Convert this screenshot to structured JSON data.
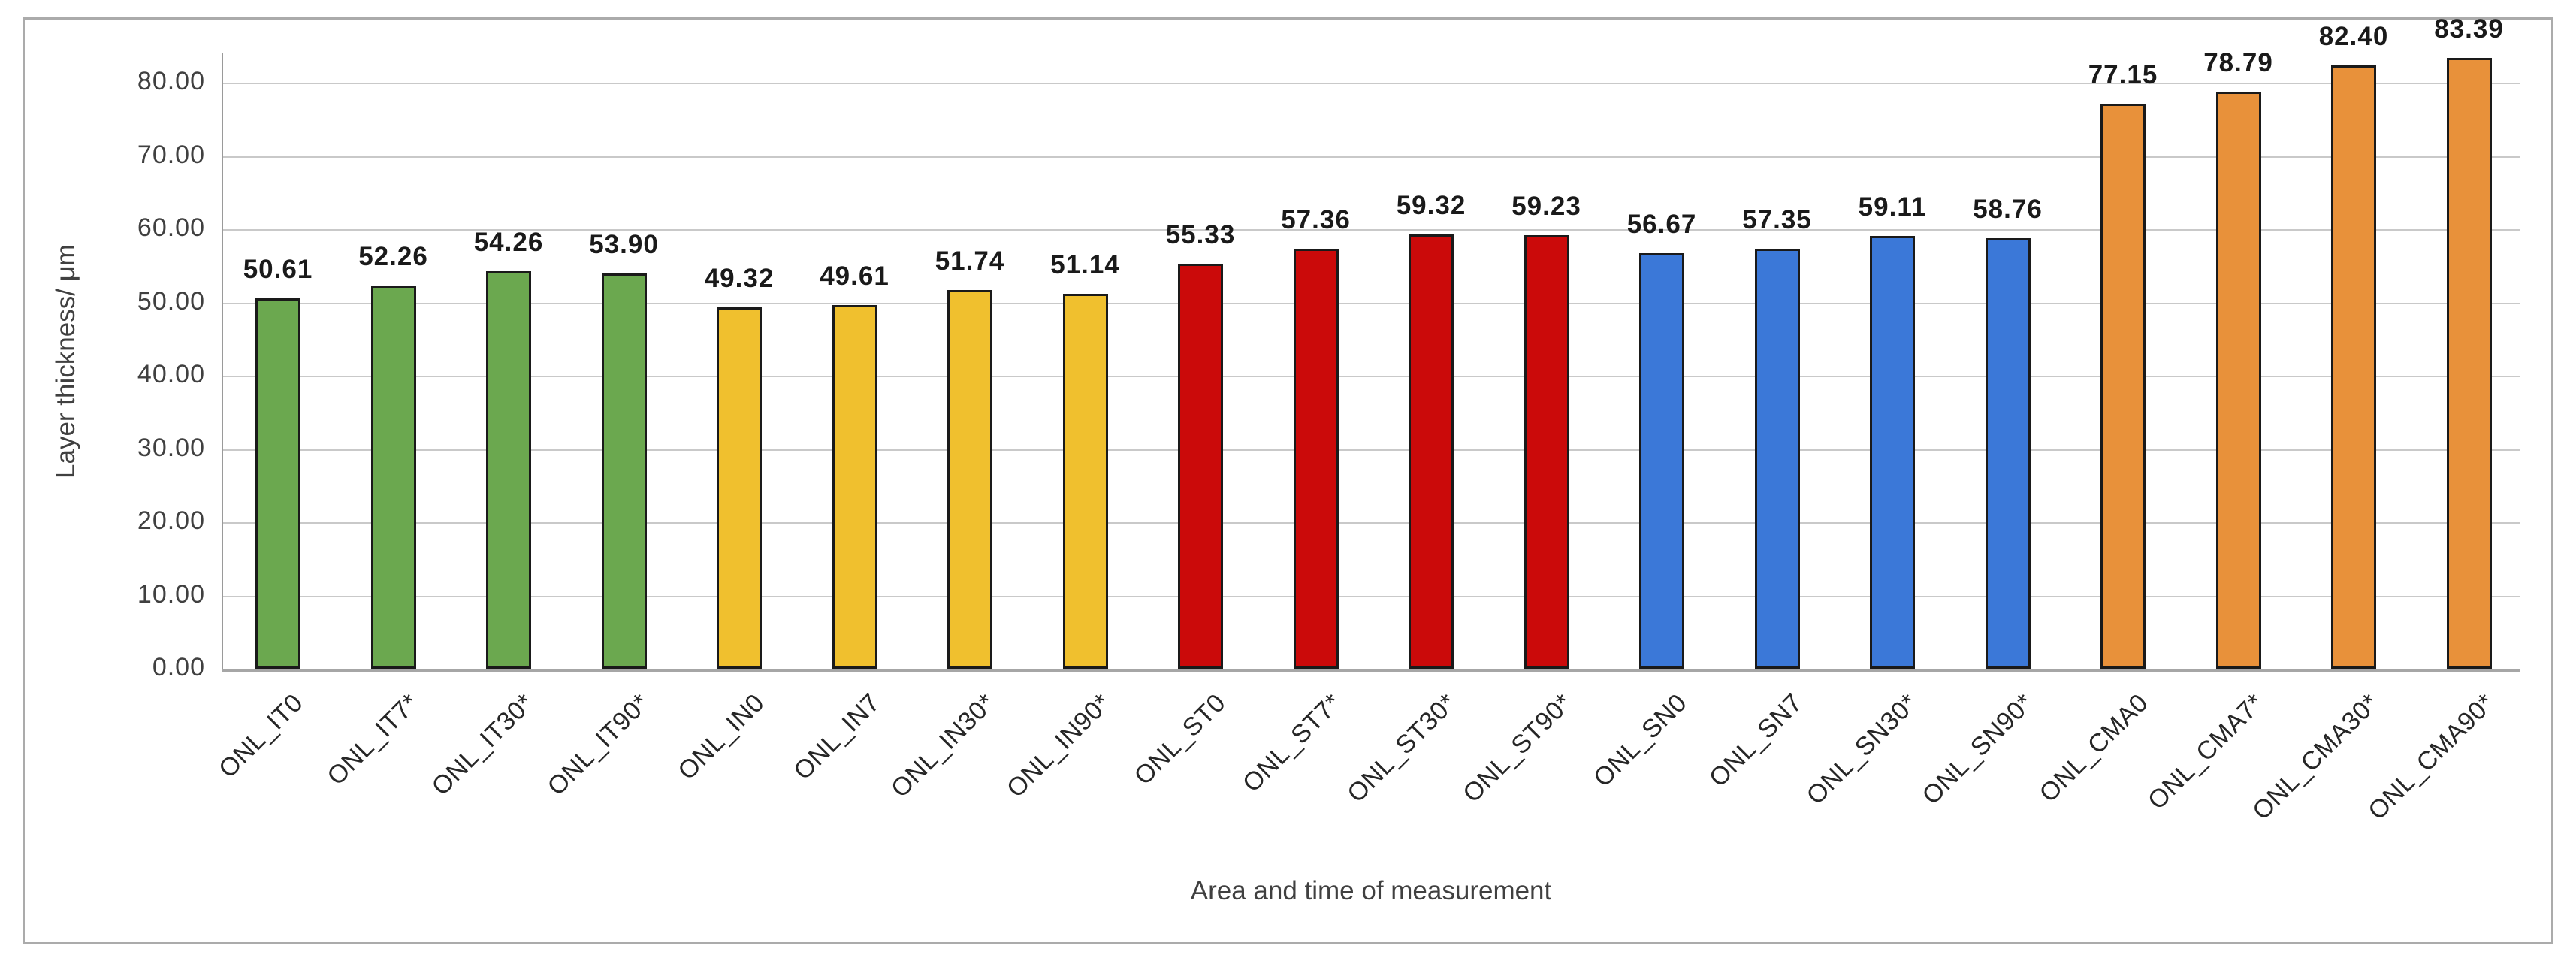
{
  "chart_data": {
    "type": "bar",
    "title": "",
    "xlabel": "Area and time of measurement",
    "ylabel": "Layer thickness/ μm",
    "ylim": [
      0,
      84.2
    ],
    "yticks": [
      0,
      10,
      20,
      30,
      40,
      50,
      60,
      70,
      80
    ],
    "ytick_decimals": 2,
    "grid": true,
    "legend_position": "none",
    "categories": [
      "ONL_IT0",
      "ONL_IT7*",
      "ONL_IT30*",
      "ONL_IT90*",
      "ONL_IN0",
      "ONL_IN7",
      "ONL_IN30*",
      "ONL_IN90*",
      "ONL_ST0",
      "ONL_ST7*",
      "ONL_ST30*",
      "ONL_ST90*",
      "ONL_SN0",
      "ONL_SN7",
      "ONL_SN30*",
      "ONL_SN90*",
      "ONL_CMA0",
      "ONL_CMA7*",
      "ONL_CMA30*",
      "ONL_CMA90*"
    ],
    "values": [
      50.61,
      52.26,
      54.26,
      53.9,
      49.32,
      49.61,
      51.74,
      51.14,
      55.33,
      57.36,
      59.32,
      59.23,
      56.67,
      57.35,
      59.11,
      58.76,
      77.15,
      78.79,
      82.4,
      83.39
    ],
    "groups": [
      {
        "name": "IT",
        "color": "#6BA84F",
        "count": 4
      },
      {
        "name": "IN",
        "color": "#F0C02E",
        "count": 4
      },
      {
        "name": "ST",
        "color": "#CB0A0A",
        "count": 4
      },
      {
        "name": "SN",
        "color": "#3B78D8",
        "count": 4
      },
      {
        "name": "CMA",
        "color": "#E8913A",
        "count": 4
      }
    ],
    "bar_border_color": "#1a1a1a",
    "gridline_color": "#c9c9c9",
    "axis_line_color": "#a6a6a6"
  }
}
